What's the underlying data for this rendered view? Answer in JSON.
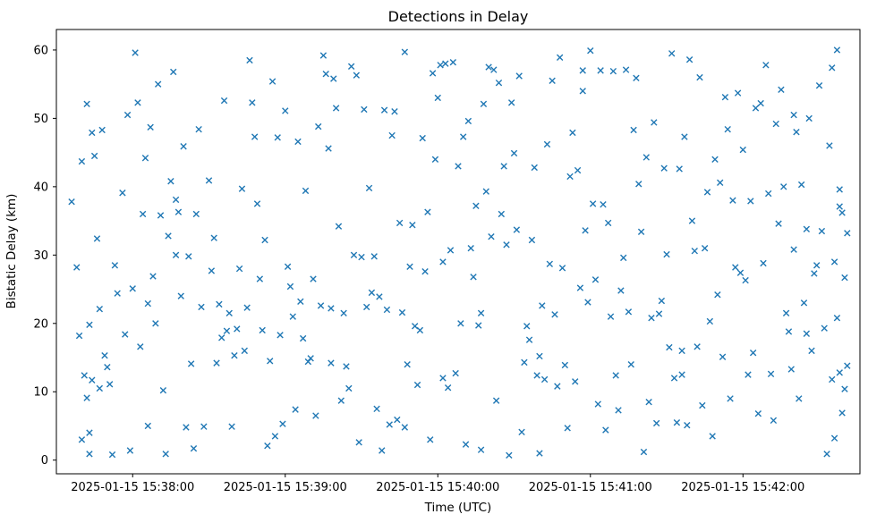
{
  "chart_data": {
    "type": "scatter",
    "title": "Detections in Delay",
    "xlabel": "Time (UTC)",
    "ylabel": "Bistatic Delay (km)",
    "marker": "x",
    "marker_color": "#1f77b4",
    "grid": false,
    "legend": "none",
    "x_axis": {
      "unit": "seconds since 2025-01-15 15:37:30 UTC",
      "xlim_s": [
        0,
        316
      ],
      "ticks": [
        {
          "offset_s": 30,
          "label": "2025-01-15 15:38:00"
        },
        {
          "offset_s": 90,
          "label": "2025-01-15 15:39:00"
        },
        {
          "offset_s": 150,
          "label": "2025-01-15 15:40:00"
        },
        {
          "offset_s": 210,
          "label": "2025-01-15 15:41:00"
        },
        {
          "offset_s": 270,
          "label": "2025-01-15 15:42:00"
        }
      ]
    },
    "y_axis": {
      "ylim": [
        -2,
        63
      ],
      "ticks": [
        0,
        10,
        20,
        30,
        40,
        50,
        60
      ]
    },
    "points": [
      [
        6,
        37.8
      ],
      [
        8,
        28.2
      ],
      [
        9,
        18.2
      ],
      [
        10,
        43.7
      ],
      [
        11,
        12.4
      ],
      [
        12,
        9.1
      ],
      [
        12,
        52.1
      ],
      [
        13,
        19.8
      ],
      [
        13,
        4.0
      ],
      [
        14,
        11.7
      ],
      [
        14,
        47.9
      ],
      [
        10,
        3.0
      ],
      [
        13,
        0.9
      ],
      [
        15,
        44.5
      ],
      [
        16,
        32.4
      ],
      [
        17,
        22.1
      ],
      [
        17,
        10.5
      ],
      [
        18,
        48.3
      ],
      [
        19,
        15.3
      ],
      [
        20,
        13.6
      ],
      [
        21,
        11.1
      ],
      [
        22,
        0.8
      ],
      [
        23,
        28.5
      ],
      [
        24,
        24.4
      ],
      [
        26,
        39.1
      ],
      [
        27,
        18.4
      ],
      [
        28,
        50.5
      ],
      [
        29,
        1.4
      ],
      [
        30,
        25.1
      ],
      [
        31,
        59.6
      ],
      [
        32,
        52.3
      ],
      [
        33,
        16.6
      ],
      [
        34,
        36.0
      ],
      [
        35,
        44.2
      ],
      [
        36,
        22.9
      ],
      [
        36,
        5.0
      ],
      [
        37,
        48.7
      ],
      [
        38,
        26.9
      ],
      [
        39,
        20.0
      ],
      [
        40,
        55.0
      ],
      [
        41,
        35.8
      ],
      [
        42,
        10.2
      ],
      [
        43,
        0.9
      ],
      [
        44,
        32.8
      ],
      [
        45,
        40.8
      ],
      [
        46,
        56.8
      ],
      [
        47,
        38.1
      ],
      [
        47,
        30.0
      ],
      [
        48,
        36.3
      ],
      [
        49,
        24.0
      ],
      [
        50,
        45.9
      ],
      [
        51,
        4.8
      ],
      [
        52,
        29.8
      ],
      [
        53,
        14.1
      ],
      [
        54,
        1.7
      ],
      [
        55,
        36.0
      ],
      [
        56,
        48.4
      ],
      [
        57,
        22.4
      ],
      [
        58,
        4.9
      ],
      [
        60,
        40.9
      ],
      [
        61,
        27.7
      ],
      [
        62,
        32.5
      ],
      [
        63,
        14.2
      ],
      [
        64,
        22.8
      ],
      [
        65,
        17.9
      ],
      [
        66,
        52.6
      ],
      [
        67,
        18.9
      ],
      [
        68,
        21.5
      ],
      [
        69,
        4.9
      ],
      [
        70,
        15.3
      ],
      [
        71,
        19.2
      ],
      [
        72,
        28.0
      ],
      [
        73,
        39.7
      ],
      [
        74,
        16.0
      ],
      [
        75,
        22.3
      ],
      [
        76,
        58.5
      ],
      [
        77,
        52.3
      ],
      [
        78,
        47.3
      ],
      [
        79,
        37.5
      ],
      [
        80,
        26.5
      ],
      [
        81,
        19.0
      ],
      [
        82,
        32.2
      ],
      [
        83,
        2.1
      ],
      [
        84,
        14.5
      ],
      [
        85,
        55.4
      ],
      [
        86,
        3.5
      ],
      [
        87,
        47.2
      ],
      [
        88,
        18.3
      ],
      [
        89,
        5.3
      ],
      [
        90,
        51.1
      ],
      [
        91,
        28.3
      ],
      [
        92,
        25.4
      ],
      [
        93,
        21.0
      ],
      [
        94,
        7.4
      ],
      [
        95,
        46.6
      ],
      [
        96,
        23.2
      ],
      [
        97,
        17.8
      ],
      [
        98,
        39.4
      ],
      [
        99,
        14.4
      ],
      [
        100,
        14.9
      ],
      [
        101,
        26.5
      ],
      [
        102,
        6.5
      ],
      [
        103,
        48.8
      ],
      [
        104,
        22.6
      ],
      [
        105,
        59.2
      ],
      [
        106,
        56.5
      ],
      [
        107,
        45.6
      ],
      [
        108,
        14.2
      ],
      [
        108,
        22.2
      ],
      [
        109,
        55.8
      ],
      [
        110,
        51.5
      ],
      [
        111,
        34.2
      ],
      [
        112,
        8.7
      ],
      [
        113,
        21.5
      ],
      [
        114,
        13.7
      ],
      [
        115,
        10.5
      ],
      [
        116,
        57.6
      ],
      [
        117,
        30.0
      ],
      [
        118,
        56.3
      ],
      [
        119,
        2.6
      ],
      [
        120,
        29.7
      ],
      [
        121,
        51.3
      ],
      [
        122,
        22.4
      ],
      [
        123,
        39.8
      ],
      [
        124,
        24.5
      ],
      [
        125,
        29.8
      ],
      [
        126,
        7.5
      ],
      [
        127,
        23.9
      ],
      [
        128,
        1.4
      ],
      [
        129,
        51.2
      ],
      [
        130,
        22.0
      ],
      [
        131,
        5.2
      ],
      [
        132,
        47.5
      ],
      [
        133,
        51.0
      ],
      [
        134,
        5.9
      ],
      [
        135,
        34.7
      ],
      [
        136,
        21.6
      ],
      [
        137,
        4.8
      ],
      [
        137,
        59.7
      ],
      [
        138,
        14.0
      ],
      [
        139,
        28.3
      ],
      [
        140,
        34.4
      ],
      [
        141,
        19.6
      ],
      [
        142,
        11.0
      ],
      [
        143,
        19.0
      ],
      [
        144,
        47.1
      ],
      [
        145,
        27.6
      ],
      [
        146,
        36.3
      ],
      [
        147,
        3.0
      ],
      [
        148,
        56.6
      ],
      [
        149,
        44.0
      ],
      [
        150,
        53.0
      ],
      [
        151,
        57.8
      ],
      [
        152,
        12.0
      ],
      [
        152,
        29.0
      ],
      [
        153,
        58.0
      ],
      [
        154,
        10.6
      ],
      [
        155,
        30.7
      ],
      [
        156,
        58.2
      ],
      [
        157,
        12.7
      ],
      [
        158,
        43.0
      ],
      [
        159,
        20.0
      ],
      [
        160,
        47.3
      ],
      [
        161,
        2.3
      ],
      [
        162,
        49.6
      ],
      [
        163,
        31.0
      ],
      [
        164,
        26.8
      ],
      [
        165,
        37.2
      ],
      [
        166,
        19.7
      ],
      [
        167,
        21.5
      ],
      [
        167,
        1.5
      ],
      [
        168,
        52.1
      ],
      [
        169,
        39.3
      ],
      [
        170,
        57.5
      ],
      [
        171,
        32.7
      ],
      [
        172,
        57.1
      ],
      [
        173,
        8.7
      ],
      [
        174,
        55.2
      ],
      [
        175,
        36.0
      ],
      [
        176,
        43.0
      ],
      [
        177,
        31.5
      ],
      [
        178,
        0.7
      ],
      [
        179,
        52.3
      ],
      [
        180,
        44.9
      ],
      [
        181,
        33.7
      ],
      [
        182,
        56.2
      ],
      [
        183,
        4.1
      ],
      [
        184,
        14.3
      ],
      [
        185,
        19.6
      ],
      [
        186,
        17.6
      ],
      [
        187,
        32.2
      ],
      [
        188,
        42.8
      ],
      [
        189,
        12.4
      ],
      [
        190,
        15.2
      ],
      [
        190,
        1.0
      ],
      [
        191,
        22.6
      ],
      [
        192,
        11.8
      ],
      [
        193,
        46.2
      ],
      [
        194,
        28.7
      ],
      [
        195,
        55.5
      ],
      [
        196,
        21.3
      ],
      [
        197,
        10.8
      ],
      [
        198,
        58.9
      ],
      [
        199,
        28.1
      ],
      [
        200,
        13.9
      ],
      [
        201,
        4.7
      ],
      [
        202,
        41.5
      ],
      [
        203,
        47.9
      ],
      [
        204,
        11.5
      ],
      [
        205,
        42.4
      ],
      [
        206,
        25.2
      ],
      [
        207,
        54.0
      ],
      [
        207,
        57.0
      ],
      [
        208,
        33.6
      ],
      [
        209,
        23.1
      ],
      [
        210,
        59.9
      ],
      [
        211,
        37.5
      ],
      [
        212,
        26.4
      ],
      [
        213,
        8.2
      ],
      [
        214,
        57.0
      ],
      [
        215,
        37.4
      ],
      [
        216,
        4.4
      ],
      [
        217,
        34.7
      ],
      [
        218,
        21.0
      ],
      [
        219,
        56.9
      ],
      [
        220,
        12.4
      ],
      [
        221,
        7.3
      ],
      [
        222,
        24.8
      ],
      [
        223,
        29.6
      ],
      [
        224,
        57.1
      ],
      [
        225,
        21.7
      ],
      [
        226,
        14.0
      ],
      [
        227,
        48.3
      ],
      [
        228,
        55.9
      ],
      [
        229,
        40.4
      ],
      [
        230,
        33.4
      ],
      [
        231,
        1.2
      ],
      [
        232,
        44.3
      ],
      [
        233,
        8.5
      ],
      [
        234,
        20.8
      ],
      [
        235,
        49.4
      ],
      [
        236,
        5.4
      ],
      [
        237,
        21.4
      ],
      [
        238,
        23.3
      ],
      [
        239,
        42.7
      ],
      [
        240,
        30.1
      ],
      [
        241,
        16.5
      ],
      [
        242,
        59.5
      ],
      [
        243,
        12.0
      ],
      [
        244,
        5.5
      ],
      [
        245,
        42.6
      ],
      [
        246,
        16.0
      ],
      [
        246,
        12.5
      ],
      [
        247,
        47.3
      ],
      [
        248,
        5.1
      ],
      [
        249,
        58.6
      ],
      [
        250,
        35.0
      ],
      [
        251,
        30.6
      ],
      [
        252,
        16.6
      ],
      [
        253,
        56.0
      ],
      [
        254,
        8.0
      ],
      [
        255,
        31.0
      ],
      [
        256,
        39.2
      ],
      [
        257,
        20.3
      ],
      [
        258,
        3.5
      ],
      [
        259,
        44.0
      ],
      [
        260,
        24.2
      ],
      [
        261,
        40.6
      ],
      [
        262,
        15.1
      ],
      [
        263,
        53.1
      ],
      [
        264,
        48.4
      ],
      [
        265,
        9.0
      ],
      [
        266,
        38.0
      ],
      [
        267,
        28.2
      ],
      [
        268,
        53.7
      ],
      [
        269,
        27.4
      ],
      [
        270,
        45.4
      ],
      [
        271,
        26.3
      ],
      [
        272,
        12.5
      ],
      [
        273,
        37.9
      ],
      [
        274,
        15.7
      ],
      [
        275,
        51.5
      ],
      [
        276,
        6.8
      ],
      [
        277,
        52.2
      ],
      [
        278,
        28.8
      ],
      [
        279,
        57.8
      ],
      [
        280,
        39.0
      ],
      [
        281,
        12.6
      ],
      [
        282,
        5.8
      ],
      [
        283,
        49.2
      ],
      [
        284,
        34.6
      ],
      [
        285,
        54.2
      ],
      [
        286,
        40.0
      ],
      [
        287,
        21.5
      ],
      [
        288,
        18.8
      ],
      [
        289,
        13.3
      ],
      [
        290,
        50.5
      ],
      [
        290,
        30.8
      ],
      [
        291,
        48.0
      ],
      [
        292,
        9.0
      ],
      [
        293,
        40.3
      ],
      [
        294,
        23.0
      ],
      [
        295,
        33.8
      ],
      [
        295,
        18.5
      ],
      [
        296,
        50.0
      ],
      [
        297,
        16.0
      ],
      [
        298,
        27.3
      ],
      [
        299,
        28.5
      ],
      [
        300,
        54.8
      ],
      [
        301,
        33.5
      ],
      [
        302,
        19.3
      ],
      [
        303,
        0.9
      ],
      [
        304,
        46.0
      ],
      [
        305,
        57.4
      ],
      [
        305,
        11.8
      ],
      [
        306,
        29.0
      ],
      [
        306,
        3.2
      ],
      [
        307,
        60.0
      ],
      [
        307,
        20.8
      ],
      [
        308,
        39.6
      ],
      [
        308,
        12.8
      ],
      [
        309,
        6.9
      ],
      [
        309,
        36.2
      ],
      [
        310,
        26.7
      ],
      [
        310,
        10.4
      ],
      [
        311,
        33.2
      ],
      [
        311,
        13.8
      ],
      [
        308,
        37.1
      ]
    ]
  }
}
